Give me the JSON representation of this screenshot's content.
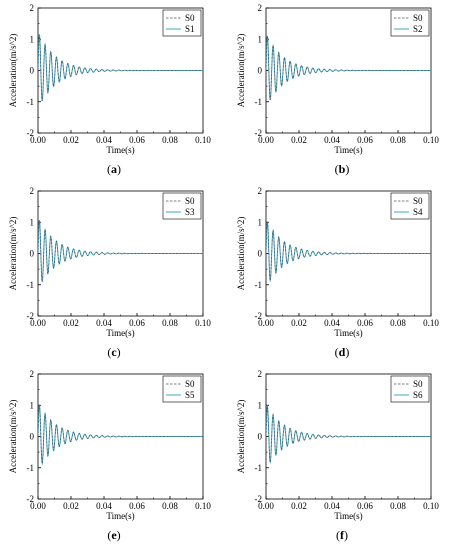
{
  "chart_data": [
    {
      "type": "line",
      "panel_label": "a",
      "xlabel": "Time(s)",
      "ylabel": "Acceleration(m/s^2)",
      "xlim": [
        0,
        0.1
      ],
      "ylim": [
        -2,
        2
      ],
      "xticks": [
        "0.00",
        "0.02",
        "0.04",
        "0.06",
        "0.08",
        "0.10"
      ],
      "yticks": [
        "-2",
        "-1",
        "0",
        "1",
        "2"
      ],
      "legend_position": "top-right",
      "series": [
        {
          "name": "S0",
          "style": "dashed",
          "color": "#555555",
          "amplitude": 1.25,
          "decay": 95,
          "frequency": 290
        },
        {
          "name": "S1",
          "style": "solid",
          "color": "#3fa9c8",
          "amplitude": 1.25,
          "decay": 95,
          "frequency": 290
        }
      ]
    },
    {
      "type": "line",
      "panel_label": "b",
      "xlabel": "Time(s)",
      "ylabel": "Acceleration(m/s^2)",
      "xlim": [
        0,
        0.1
      ],
      "ylim": [
        -2,
        2
      ],
      "xticks": [
        "0.00",
        "0.02",
        "0.04",
        "0.06",
        "0.08",
        "0.10"
      ],
      "yticks": [
        "-2",
        "-1",
        "0",
        "1",
        "2"
      ],
      "legend_position": "top-right",
      "series": [
        {
          "name": "S0",
          "style": "dashed",
          "color": "#555555",
          "amplitude": 1.2,
          "decay": 95,
          "frequency": 290
        },
        {
          "name": "S2",
          "style": "solid",
          "color": "#3fa9c8",
          "amplitude": 1.2,
          "decay": 95,
          "frequency": 290
        }
      ]
    },
    {
      "type": "line",
      "panel_label": "c",
      "xlabel": "Time(s)",
      "ylabel": "Acceleration(m/s^2)",
      "xlim": [
        0,
        0.1
      ],
      "ylim": [
        -2,
        2
      ],
      "xticks": [
        "0.00",
        "0.02",
        "0.04",
        "0.06",
        "0.08",
        "0.10"
      ],
      "yticks": [
        "-2",
        "-1",
        "0",
        "1",
        "2"
      ],
      "legend_position": "top-right",
      "series": [
        {
          "name": "S0",
          "style": "dashed",
          "color": "#555555",
          "amplitude": 1.15,
          "decay": 95,
          "frequency": 290
        },
        {
          "name": "S3",
          "style": "solid",
          "color": "#3fa9c8",
          "amplitude": 1.15,
          "decay": 95,
          "frequency": 290
        }
      ]
    },
    {
      "type": "line",
      "panel_label": "d",
      "xlabel": "Time(s)",
      "ylabel": "Acceleration(m/s^2)",
      "xlim": [
        0,
        0.1
      ],
      "ylim": [
        -2,
        2
      ],
      "xticks": [
        "0.00",
        "0.02",
        "0.04",
        "0.06",
        "0.08",
        "0.10"
      ],
      "yticks": [
        "-2",
        "-1",
        "0",
        "1",
        "2"
      ],
      "legend_position": "top-right",
      "series": [
        {
          "name": "S0",
          "style": "dashed",
          "color": "#555555",
          "amplitude": 1.1,
          "decay": 95,
          "frequency": 290
        },
        {
          "name": "S4",
          "style": "solid",
          "color": "#3fa9c8",
          "amplitude": 1.1,
          "decay": 95,
          "frequency": 290
        }
      ]
    },
    {
      "type": "line",
      "panel_label": "e",
      "xlabel": "Time(s)",
      "ylabel": "Acceleration(m/s^2)",
      "xlim": [
        0,
        0.1
      ],
      "ylim": [
        -2,
        2
      ],
      "xticks": [
        "0.00",
        "0.02",
        "0.04",
        "0.06",
        "0.08",
        "0.10"
      ],
      "yticks": [
        "-2",
        "-1",
        "0",
        "1",
        "2"
      ],
      "legend_position": "top-right",
      "series": [
        {
          "name": "S0",
          "style": "dashed",
          "color": "#555555",
          "amplitude": 1.1,
          "decay": 95,
          "frequency": 290
        },
        {
          "name": "S5",
          "style": "solid",
          "color": "#3fa9c8",
          "amplitude": 1.1,
          "decay": 95,
          "frequency": 290
        }
      ]
    },
    {
      "type": "line",
      "panel_label": "f",
      "xlabel": "Time(s)",
      "ylabel": "Acceleration(m/s^2)",
      "xlim": [
        0,
        0.1
      ],
      "ylim": [
        -2,
        2
      ],
      "xticks": [
        "0.00",
        "0.02",
        "0.04",
        "0.06",
        "0.08",
        "0.10"
      ],
      "yticks": [
        "-2",
        "-1",
        "0",
        "1",
        "2"
      ],
      "legend_position": "top-right",
      "series": [
        {
          "name": "S0",
          "style": "dashed",
          "color": "#555555",
          "amplitude": 1.05,
          "decay": 95,
          "frequency": 290
        },
        {
          "name": "S6",
          "style": "solid",
          "color": "#3fa9c8",
          "amplitude": 1.05,
          "decay": 95,
          "frequency": 290
        }
      ]
    }
  ]
}
